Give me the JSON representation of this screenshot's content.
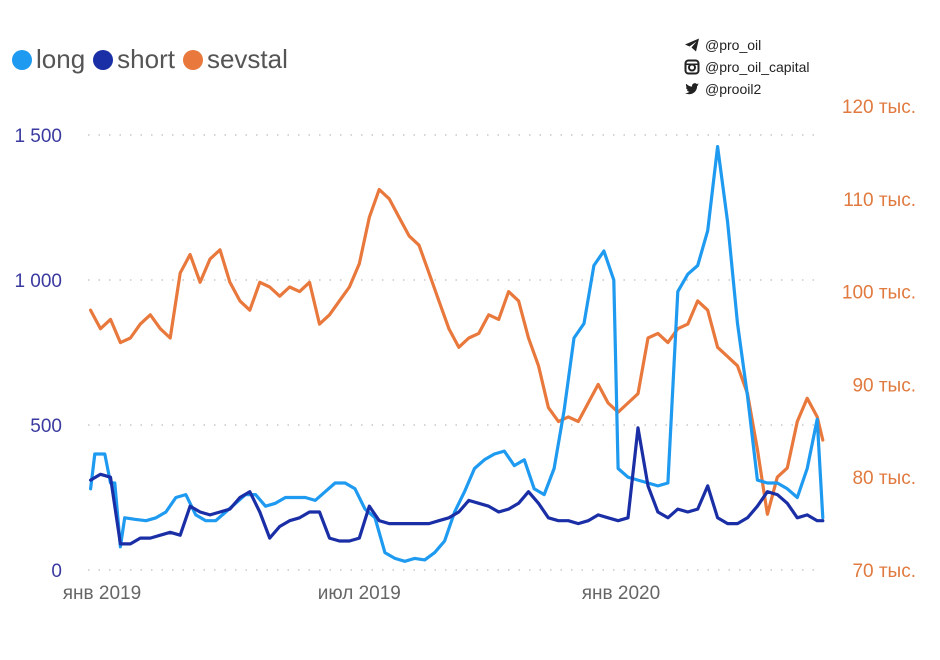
{
  "social": {
    "telegram": "@pro_oil",
    "instagram": "@pro_oil_capital",
    "twitter": "@prooil2"
  },
  "chart_data": {
    "type": "line",
    "title": "",
    "legend_position": "top-left",
    "grid": true,
    "x_range": [
      "2018-12-25",
      "2020-05-20"
    ],
    "x_ticks": [
      {
        "date": "2019-01-01",
        "label": "янв 2019"
      },
      {
        "date": "2019-07-01",
        "label": "июл 2019"
      },
      {
        "date": "2020-01-01",
        "label": "янв 2020"
      }
    ],
    "y_left": {
      "min": 0,
      "max": 1500,
      "ticks": [
        0,
        500,
        1000,
        1500
      ],
      "tick_labels": [
        "0",
        "500",
        "1 000",
        "1 500"
      ]
    },
    "y_right": {
      "min": 70000,
      "max": 120000,
      "ticks": [
        70000,
        80000,
        90000,
        100000,
        110000,
        120000
      ],
      "tick_labels": [
        "70 тыс.",
        "80 тыс.",
        "90 тыс.",
        "100 тыс.",
        "110 тыс.",
        "120 тыс."
      ]
    },
    "series": [
      {
        "name": "long",
        "axis": "left",
        "color": "#1e9af0",
        "points": [
          [
            "2018-12-24",
            280
          ],
          [
            "2018-12-27",
            400
          ],
          [
            "2019-01-03",
            400
          ],
          [
            "2019-01-07",
            300
          ],
          [
            "2019-01-10",
            300
          ],
          [
            "2019-01-14",
            80
          ],
          [
            "2019-01-17",
            180
          ],
          [
            "2019-01-24",
            175
          ],
          [
            "2019-02-01",
            170
          ],
          [
            "2019-02-08",
            180
          ],
          [
            "2019-02-15",
            200
          ],
          [
            "2019-02-22",
            250
          ],
          [
            "2019-03-01",
            260
          ],
          [
            "2019-03-08",
            190
          ],
          [
            "2019-03-15",
            170
          ],
          [
            "2019-03-22",
            170
          ],
          [
            "2019-03-29",
            200
          ],
          [
            "2019-04-05",
            230
          ],
          [
            "2019-04-12",
            260
          ],
          [
            "2019-04-19",
            260
          ],
          [
            "2019-04-26",
            220
          ],
          [
            "2019-05-03",
            230
          ],
          [
            "2019-05-10",
            250
          ],
          [
            "2019-05-17",
            250
          ],
          [
            "2019-05-24",
            250
          ],
          [
            "2019-05-31",
            240
          ],
          [
            "2019-06-07",
            270
          ],
          [
            "2019-06-14",
            300
          ],
          [
            "2019-06-21",
            300
          ],
          [
            "2019-06-28",
            280
          ],
          [
            "2019-07-05",
            210
          ],
          [
            "2019-07-12",
            180
          ],
          [
            "2019-07-19",
            60
          ],
          [
            "2019-07-26",
            40
          ],
          [
            "2019-08-02",
            30
          ],
          [
            "2019-08-09",
            40
          ],
          [
            "2019-08-16",
            35
          ],
          [
            "2019-08-23",
            60
          ],
          [
            "2019-08-30",
            100
          ],
          [
            "2019-09-06",
            200
          ],
          [
            "2019-09-13",
            270
          ],
          [
            "2019-09-20",
            350
          ],
          [
            "2019-09-27",
            380
          ],
          [
            "2019-10-04",
            400
          ],
          [
            "2019-10-11",
            410
          ],
          [
            "2019-10-18",
            360
          ],
          [
            "2019-10-25",
            380
          ],
          [
            "2019-11-01",
            280
          ],
          [
            "2019-11-08",
            260
          ],
          [
            "2019-11-15",
            350
          ],
          [
            "2019-11-22",
            550
          ],
          [
            "2019-11-29",
            800
          ],
          [
            "2019-12-06",
            850
          ],
          [
            "2019-12-13",
            1050
          ],
          [
            "2019-12-20",
            1100
          ],
          [
            "2019-12-27",
            1000
          ],
          [
            "2019-12-30",
            350
          ],
          [
            "2020-01-06",
            320
          ],
          [
            "2020-01-13",
            310
          ],
          [
            "2020-01-20",
            300
          ],
          [
            "2020-01-27",
            290
          ],
          [
            "2020-02-03",
            300
          ],
          [
            "2020-02-10",
            960
          ],
          [
            "2020-02-17",
            1020
          ],
          [
            "2020-02-24",
            1050
          ],
          [
            "2020-03-02",
            1170
          ],
          [
            "2020-03-09",
            1460
          ],
          [
            "2020-03-16",
            1200
          ],
          [
            "2020-03-23",
            850
          ],
          [
            "2020-03-30",
            600
          ],
          [
            "2020-04-06",
            310
          ],
          [
            "2020-04-13",
            300
          ],
          [
            "2020-04-20",
            300
          ],
          [
            "2020-04-27",
            280
          ],
          [
            "2020-05-04",
            250
          ],
          [
            "2020-05-11",
            350
          ],
          [
            "2020-05-18",
            520
          ],
          [
            "2020-05-22",
            180
          ]
        ]
      },
      {
        "name": "short",
        "axis": "left",
        "color": "#1a2ea6",
        "points": [
          [
            "2018-12-24",
            310
          ],
          [
            "2018-12-31",
            330
          ],
          [
            "2019-01-07",
            320
          ],
          [
            "2019-01-14",
            90
          ],
          [
            "2019-01-21",
            90
          ],
          [
            "2019-01-28",
            110
          ],
          [
            "2019-02-04",
            110
          ],
          [
            "2019-02-11",
            120
          ],
          [
            "2019-02-18",
            130
          ],
          [
            "2019-02-25",
            120
          ],
          [
            "2019-03-04",
            220
          ],
          [
            "2019-03-11",
            200
          ],
          [
            "2019-03-18",
            190
          ],
          [
            "2019-03-25",
            200
          ],
          [
            "2019-04-01",
            210
          ],
          [
            "2019-04-08",
            250
          ],
          [
            "2019-04-15",
            270
          ],
          [
            "2019-04-22",
            200
          ],
          [
            "2019-04-29",
            110
          ],
          [
            "2019-05-06",
            150
          ],
          [
            "2019-05-13",
            170
          ],
          [
            "2019-05-20",
            180
          ],
          [
            "2019-05-27",
            200
          ],
          [
            "2019-06-03",
            200
          ],
          [
            "2019-06-10",
            110
          ],
          [
            "2019-06-17",
            100
          ],
          [
            "2019-06-24",
            100
          ],
          [
            "2019-07-01",
            110
          ],
          [
            "2019-07-08",
            220
          ],
          [
            "2019-07-15",
            170
          ],
          [
            "2019-07-22",
            160
          ],
          [
            "2019-07-29",
            160
          ],
          [
            "2019-08-05",
            160
          ],
          [
            "2019-08-12",
            160
          ],
          [
            "2019-08-19",
            160
          ],
          [
            "2019-08-26",
            170
          ],
          [
            "2019-09-02",
            180
          ],
          [
            "2019-09-09",
            200
          ],
          [
            "2019-09-16",
            240
          ],
          [
            "2019-09-23",
            230
          ],
          [
            "2019-09-30",
            220
          ],
          [
            "2019-10-07",
            200
          ],
          [
            "2019-10-14",
            210
          ],
          [
            "2019-10-21",
            230
          ],
          [
            "2019-10-28",
            270
          ],
          [
            "2019-11-04",
            230
          ],
          [
            "2019-11-11",
            180
          ],
          [
            "2019-11-18",
            170
          ],
          [
            "2019-11-25",
            170
          ],
          [
            "2019-12-02",
            160
          ],
          [
            "2019-12-09",
            170
          ],
          [
            "2019-12-16",
            190
          ],
          [
            "2019-12-23",
            180
          ],
          [
            "2019-12-30",
            170
          ],
          [
            "2020-01-06",
            180
          ],
          [
            "2020-01-13",
            490
          ],
          [
            "2020-01-20",
            290
          ],
          [
            "2020-01-27",
            200
          ],
          [
            "2020-02-03",
            180
          ],
          [
            "2020-02-10",
            210
          ],
          [
            "2020-02-17",
            200
          ],
          [
            "2020-02-24",
            210
          ],
          [
            "2020-03-02",
            290
          ],
          [
            "2020-03-09",
            180
          ],
          [
            "2020-03-16",
            160
          ],
          [
            "2020-03-23",
            160
          ],
          [
            "2020-03-30",
            180
          ],
          [
            "2020-04-06",
            220
          ],
          [
            "2020-04-13",
            270
          ],
          [
            "2020-04-20",
            260
          ],
          [
            "2020-04-27",
            230
          ],
          [
            "2020-05-04",
            180
          ],
          [
            "2020-05-11",
            190
          ],
          [
            "2020-05-18",
            170
          ],
          [
            "2020-05-22",
            170
          ]
        ]
      },
      {
        "name": "sevstal",
        "axis": "right",
        "color": "#e8783c",
        "points": [
          [
            "2018-12-24",
            98000
          ],
          [
            "2018-12-31",
            96000
          ],
          [
            "2019-01-07",
            97000
          ],
          [
            "2019-01-14",
            94500
          ],
          [
            "2019-01-21",
            95000
          ],
          [
            "2019-01-28",
            96500
          ],
          [
            "2019-02-04",
            97500
          ],
          [
            "2019-02-11",
            96000
          ],
          [
            "2019-02-18",
            95000
          ],
          [
            "2019-02-25",
            102000
          ],
          [
            "2019-03-04",
            104000
          ],
          [
            "2019-03-11",
            101000
          ],
          [
            "2019-03-18",
            103500
          ],
          [
            "2019-03-25",
            104500
          ],
          [
            "2019-04-01",
            101000
          ],
          [
            "2019-04-08",
            99000
          ],
          [
            "2019-04-15",
            98000
          ],
          [
            "2019-04-22",
            101000
          ],
          [
            "2019-04-29",
            100500
          ],
          [
            "2019-05-06",
            99500
          ],
          [
            "2019-05-13",
            100500
          ],
          [
            "2019-05-20",
            100000
          ],
          [
            "2019-05-27",
            101000
          ],
          [
            "2019-06-03",
            96500
          ],
          [
            "2019-06-10",
            97500
          ],
          [
            "2019-06-17",
            99000
          ],
          [
            "2019-06-24",
            100500
          ],
          [
            "2019-07-01",
            103000
          ],
          [
            "2019-07-08",
            108000
          ],
          [
            "2019-07-15",
            111000
          ],
          [
            "2019-07-22",
            110000
          ],
          [
            "2019-07-29",
            108000
          ],
          [
            "2019-08-05",
            106000
          ],
          [
            "2019-08-12",
            105000
          ],
          [
            "2019-08-19",
            102000
          ],
          [
            "2019-08-26",
            99000
          ],
          [
            "2019-09-02",
            96000
          ],
          [
            "2019-09-09",
            94000
          ],
          [
            "2019-09-16",
            95000
          ],
          [
            "2019-09-23",
            95500
          ],
          [
            "2019-09-30",
            97500
          ],
          [
            "2019-10-07",
            97000
          ],
          [
            "2019-10-14",
            100000
          ],
          [
            "2019-10-21",
            99000
          ],
          [
            "2019-10-28",
            95000
          ],
          [
            "2019-11-04",
            92000
          ],
          [
            "2019-11-11",
            87500
          ],
          [
            "2019-11-18",
            86000
          ],
          [
            "2019-11-25",
            86500
          ],
          [
            "2019-12-02",
            86000
          ],
          [
            "2019-12-09",
            88000
          ],
          [
            "2019-12-16",
            90000
          ],
          [
            "2019-12-23",
            88000
          ],
          [
            "2019-12-30",
            87000
          ],
          [
            "2020-01-06",
            88000
          ],
          [
            "2020-01-13",
            89000
          ],
          [
            "2020-01-20",
            95000
          ],
          [
            "2020-01-27",
            95500
          ],
          [
            "2020-02-03",
            94500
          ],
          [
            "2020-02-10",
            96000
          ],
          [
            "2020-02-17",
            96500
          ],
          [
            "2020-02-24",
            99000
          ],
          [
            "2020-03-02",
            98000
          ],
          [
            "2020-03-09",
            94000
          ],
          [
            "2020-03-16",
            93000
          ],
          [
            "2020-03-23",
            92000
          ],
          [
            "2020-03-30",
            89000
          ],
          [
            "2020-04-06",
            83000
          ],
          [
            "2020-04-13",
            76000
          ],
          [
            "2020-04-20",
            80000
          ],
          [
            "2020-04-27",
            81000
          ],
          [
            "2020-05-04",
            86000
          ],
          [
            "2020-05-11",
            88500
          ],
          [
            "2020-05-18",
            86500
          ],
          [
            "2020-05-22",
            84000
          ]
        ]
      }
    ]
  }
}
